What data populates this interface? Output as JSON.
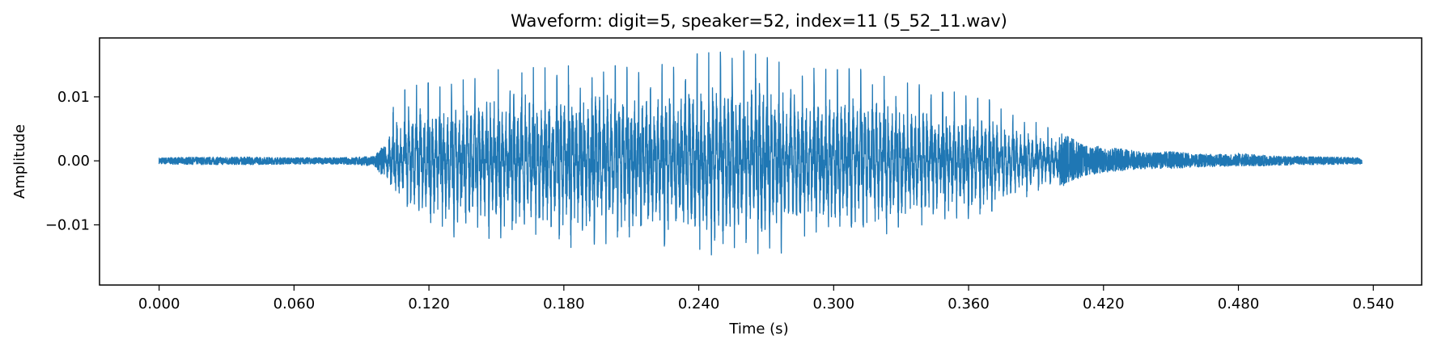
{
  "chart_data": {
    "type": "line",
    "title": "Waveform: digit=5, speaker=52, index=11  (5_52_11.wav)",
    "xlabel": "Time (s)",
    "ylabel": "Amplitude",
    "xlim": [
      -0.0265,
      0.5615
    ],
    "ylim": [
      -0.0194,
      0.0192
    ],
    "x_ticks": [
      0.0,
      0.06,
      0.12,
      0.18,
      0.24,
      0.3,
      0.36,
      0.42,
      0.48,
      0.54
    ],
    "x_tick_labels": [
      "0.000",
      "0.060",
      "0.120",
      "0.180",
      "0.240",
      "0.300",
      "0.360",
      "0.420",
      "0.480",
      "0.540"
    ],
    "y_ticks": [
      0.01,
      0.0,
      -0.01
    ],
    "y_tick_labels": [
      "0.01",
      "0.00",
      "−0.01"
    ],
    "grid": false,
    "series": [
      {
        "name": "5_52_11.wav",
        "color": "#1f77b4",
        "duration_s": 0.535,
        "envelope": {
          "t": [
            0.0,
            0.02,
            0.04,
            0.06,
            0.08,
            0.095,
            0.1,
            0.104,
            0.106,
            0.11,
            0.12,
            0.13,
            0.14,
            0.15,
            0.16,
            0.17,
            0.18,
            0.19,
            0.2,
            0.21,
            0.22,
            0.23,
            0.24,
            0.25,
            0.26,
            0.27,
            0.28,
            0.29,
            0.3,
            0.31,
            0.32,
            0.33,
            0.34,
            0.35,
            0.36,
            0.37,
            0.38,
            0.39,
            0.4,
            0.41,
            0.42,
            0.43,
            0.44,
            0.45,
            0.46,
            0.47,
            0.48,
            0.49,
            0.5,
            0.51,
            0.52,
            0.535
          ],
          "max": [
            0.0005,
            0.0006,
            0.0006,
            0.0005,
            0.0005,
            0.0007,
            0.0025,
            0.0085,
            0.0092,
            0.0115,
            0.0122,
            0.0125,
            0.0128,
            0.0142,
            0.0147,
            0.0145,
            0.0148,
            0.015,
            0.0148,
            0.015,
            0.0148,
            0.0155,
            0.0168,
            0.017,
            0.0172,
            0.0162,
            0.015,
            0.0145,
            0.0142,
            0.0145,
            0.0135,
            0.0123,
            0.0118,
            0.0112,
            0.01,
            0.0095,
            0.0072,
            0.006,
            0.0045,
            0.0028,
            0.0022,
            0.0018,
            0.0012,
            0.0015,
            0.0011,
            0.001,
            0.0012,
            0.0009,
            0.0007,
            0.0007,
            0.0006,
            0.0005
          ],
          "min": [
            -0.0005,
            -0.0006,
            -0.0006,
            -0.0005,
            -0.0005,
            -0.0008,
            -0.003,
            -0.0075,
            -0.0085,
            -0.0098,
            -0.0115,
            -0.0132,
            -0.0138,
            -0.015,
            -0.0145,
            -0.0148,
            -0.015,
            -0.0152,
            -0.0148,
            -0.0155,
            -0.0152,
            -0.0158,
            -0.0172,
            -0.0175,
            -0.0168,
            -0.0165,
            -0.0155,
            -0.0148,
            -0.0145,
            -0.0145,
            -0.0138,
            -0.0128,
            -0.0122,
            -0.0115,
            -0.0108,
            -0.0095,
            -0.0078,
            -0.006,
            -0.0045,
            -0.0025,
            -0.0018,
            -0.0015,
            -0.0012,
            -0.0012,
            -0.001,
            -0.0009,
            -0.0008,
            -0.0008,
            -0.0007,
            -0.0006,
            -0.0006,
            -0.0005
          ]
        },
        "pitch_period_s": 0.0052
      }
    ]
  }
}
